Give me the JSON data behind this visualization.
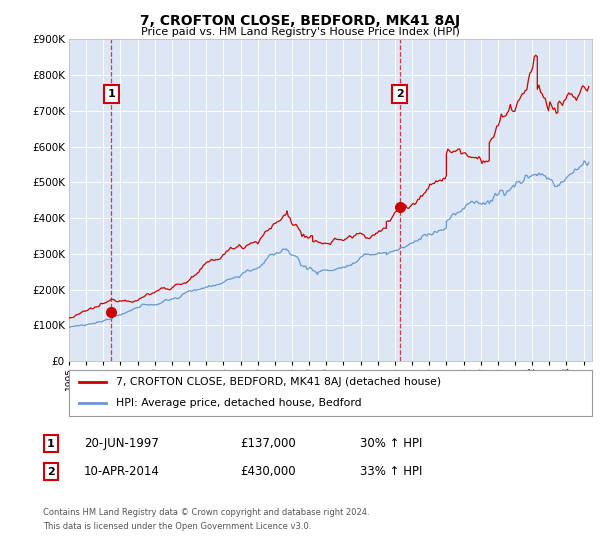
{
  "title": "7, CROFTON CLOSE, BEDFORD, MK41 8AJ",
  "subtitle": "Price paid vs. HM Land Registry's House Price Index (HPI)",
  "plot_bg_color": "#dce6f5",
  "red_line_color": "#cc0000",
  "blue_line_color": "#6699cc",
  "grid_color": "#ffffff",
  "sale1_date": 1997.47,
  "sale1_price": 137000,
  "sale2_date": 2014.27,
  "sale2_price": 430000,
  "xmin": 1995.0,
  "xmax": 2025.5,
  "ymin": 0,
  "ymax": 900000,
  "legend_line1": "7, CROFTON CLOSE, BEDFORD, MK41 8AJ (detached house)",
  "legend_line2": "HPI: Average price, detached house, Bedford",
  "table_row1_num": "1",
  "table_row1_date": "20-JUN-1997",
  "table_row1_price": "£137,000",
  "table_row1_hpi": "30% ↑ HPI",
  "table_row2_num": "2",
  "table_row2_date": "10-APR-2014",
  "table_row2_price": "£430,000",
  "table_row2_hpi": "33% ↑ HPI",
  "footer1": "Contains HM Land Registry data © Crown copyright and database right 2024.",
  "footer2": "This data is licensed under the Open Government Licence v3.0."
}
